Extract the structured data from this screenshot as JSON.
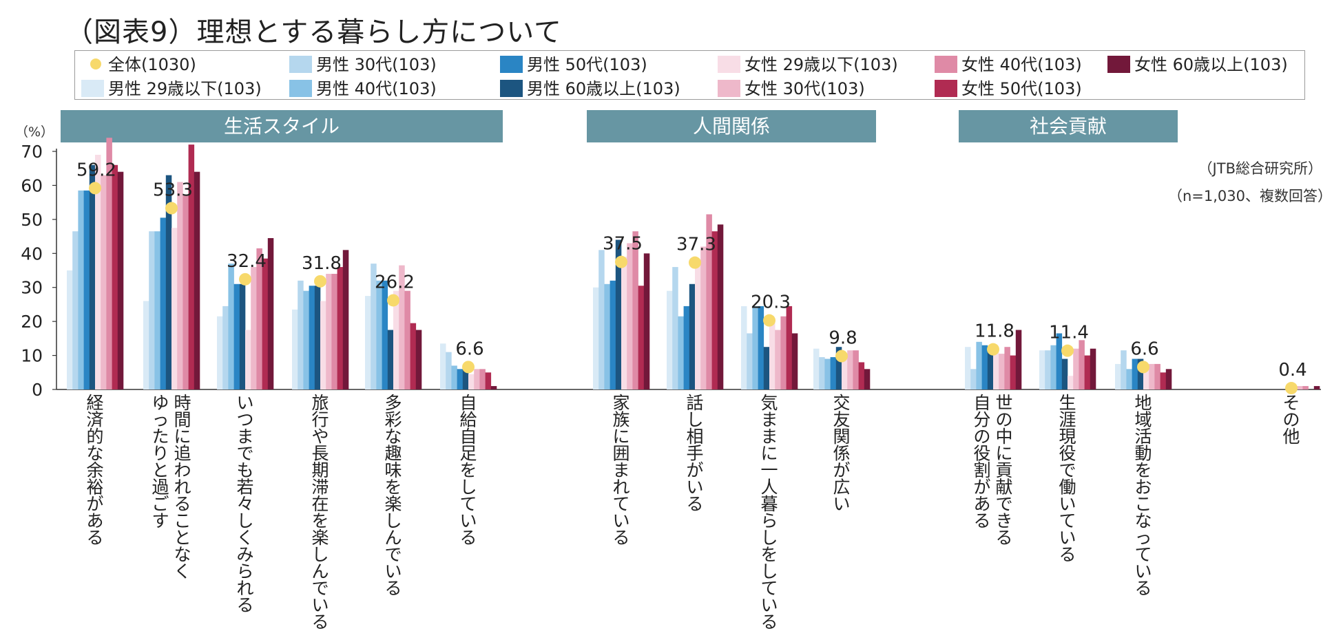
{
  "chart_data": {
    "type": "bar",
    "title": "（図表9）理想とする暮らし方について",
    "ylabel": "（%）",
    "ylim": [
      0,
      70
    ],
    "yticks": [
      0,
      10,
      20,
      30,
      40,
      50,
      60,
      70
    ],
    "source_note": "（JTB総合研究所）",
    "sample_note": "（n=1,030、複数回答）",
    "sections": [
      {
        "label": "生活スタイル",
        "from": 0,
        "to": 5
      },
      {
        "label": "人間関係",
        "from": 6,
        "to": 9
      },
      {
        "label": "社会貢献",
        "from": 10,
        "to": 12
      }
    ],
    "categories": [
      "経済的な余裕がある",
      "時間に追われることなく|ゆったりと過ごす",
      "いつまでも若々しくみられる",
      "旅行や長期滞在を楽しんでいる",
      "多彩な趣味を楽しんでいる",
      "自給自足をしている",
      "家族に囲まれている",
      "話し相手がいる",
      "気ままに一人暮らしをしている",
      "交友関係が広い",
      "世の中に貢献できる|自分の役割がある",
      "生涯現役で働いている",
      "地域活動をおこなっている",
      "その他"
    ],
    "overall": {
      "name": "全体(1030)",
      "color": "#f7d96b",
      "values": [
        59.2,
        53.3,
        32.4,
        31.8,
        26.2,
        6.6,
        37.5,
        37.3,
        20.3,
        9.8,
        11.8,
        11.4,
        6.6,
        0.4
      ],
      "labels": [
        "59.2",
        "53.3",
        "32.4",
        "31.8",
        "26.2",
        "6.6",
        "37.5",
        "37.3",
        "20.3",
        "9.8",
        "11.8",
        "11.4",
        "6.6",
        "0.4"
      ]
    },
    "series": [
      {
        "name": "男性 29歳以下(103)",
        "color": "#d9eaf6",
        "values": [
          35,
          26,
          21.5,
          23.5,
          27.5,
          13.5,
          30,
          29,
          24.5,
          12,
          12.5,
          11.5,
          7.5,
          0
        ]
      },
      {
        "name": "男性 30代(103)",
        "color": "#b5d7ee",
        "values": [
          46.5,
          46.5,
          24.5,
          32,
          37,
          11,
          41,
          36,
          16.5,
          9.5,
          6,
          11.5,
          11.5,
          0
        ]
      },
      {
        "name": "男性 40代(103)",
        "color": "#88c2e6",
        "values": [
          58.5,
          46.5,
          37,
          29,
          32,
          7,
          31,
          21.5,
          24.5,
          9,
          14,
          13,
          6,
          0
        ]
      },
      {
        "name": "男性 50代(103)",
        "color": "#2a85c4",
        "values": [
          58.5,
          50.5,
          31,
          30.5,
          32,
          6,
          32,
          24.5,
          24.5,
          9.5,
          13,
          16.5,
          9,
          0
        ]
      },
      {
        "name": "男性 60歳以上(103)",
        "color": "#1c5580",
        "values": [
          66,
          63,
          31,
          30.5,
          17.5,
          6.5,
          44,
          31,
          12.5,
          12.5,
          12,
          9,
          9,
          0
        ]
      },
      {
        "name": "女性 29歳以下(103)",
        "color": "#f8dde6",
        "values": [
          69,
          47.5,
          17.5,
          26,
          29,
          4.5,
          39,
          38,
          21,
          9,
          12.5,
          4,
          6.5,
          0
        ]
      },
      {
        "name": "女性 30代(103)",
        "color": "#eeb8ca",
        "values": [
          63,
          61,
          36,
          34,
          36.5,
          6,
          43,
          42,
          17.5,
          11.5,
          10.5,
          12,
          7.5,
          1
        ]
      },
      {
        "name": "女性 40代(103)",
        "color": "#df8aa6",
        "values": [
          74,
          57,
          41.5,
          34,
          29,
          6,
          46.5,
          51.5,
          21.5,
          11.5,
          12.5,
          14.5,
          7.5,
          1
        ]
      },
      {
        "name": "女性 50代(103)",
        "color": "#b02b52",
        "values": [
          66,
          72,
          38.5,
          36,
          19.5,
          5,
          30.5,
          46.5,
          24.5,
          8,
          10,
          10,
          5,
          0
        ]
      },
      {
        "name": "女性 60歳以上(103)",
        "color": "#72183a",
        "values": [
          64,
          64,
          44.5,
          41,
          17.5,
          1,
          40,
          48.5,
          16.5,
          6,
          17.5,
          12,
          6,
          1
        ]
      }
    ],
    "legend_order": [
      "全体(1030)",
      "男性 30代(103)",
      "男性 50代(103)",
      "女性 29歳以下(103)",
      "女性 40代(103)",
      "女性 60歳以上(103)",
      "男性 29歳以下(103)",
      "男性 40代(103)",
      "男性 60歳以上(103)",
      "女性 30代(103)",
      "女性 50代(103)"
    ]
  }
}
